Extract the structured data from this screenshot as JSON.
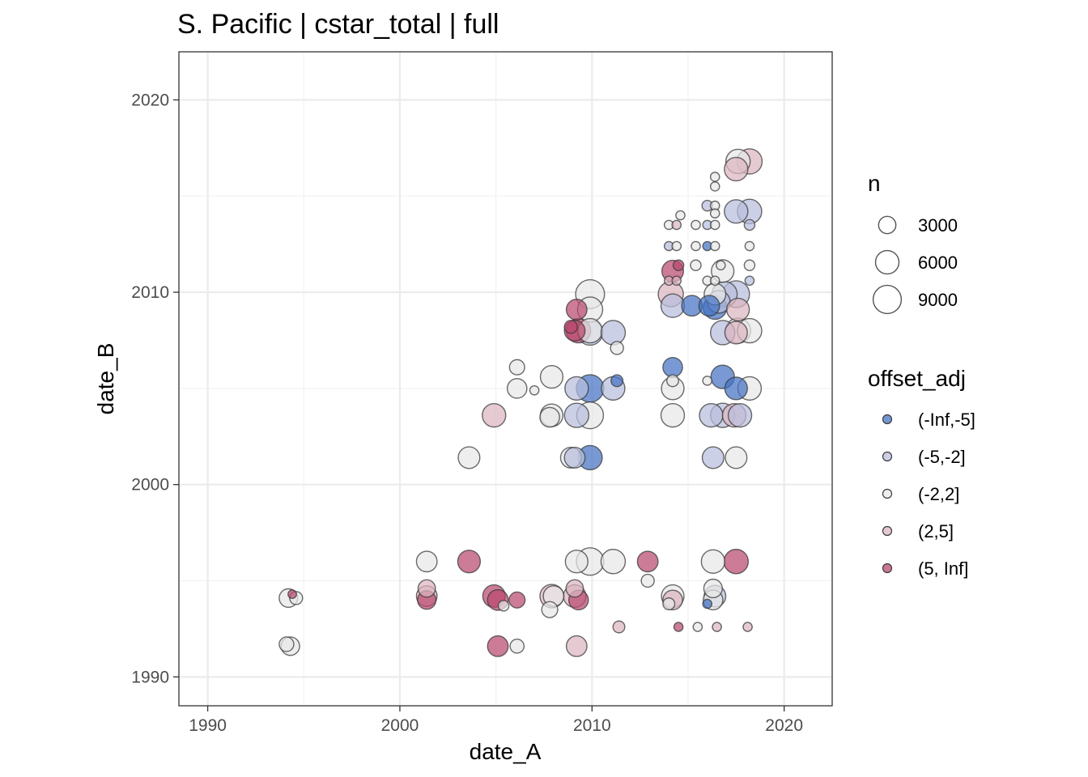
{
  "chart_data": {
    "type": "scatter",
    "title": "S. Pacific | cstar_total | full",
    "xlabel": "date_A",
    "ylabel": "date_B",
    "xlim": [
      1988.5,
      2022.5
    ],
    "ylim": [
      1988.5,
      2022.5
    ],
    "xticks": [
      1990,
      2000,
      2010,
      2020
    ],
    "yticks": [
      1990,
      2000,
      2010,
      2020
    ],
    "xtick_labels": [
      "1990",
      "2000",
      "2010",
      "2020"
    ],
    "ytick_labels": [
      "1990",
      "2000",
      "2010",
      "2020"
    ],
    "grid": true,
    "size_legend": {
      "title": "n",
      "entries": [
        {
          "label": "3000",
          "n": 3000
        },
        {
          "label": "6000",
          "n": 6000
        },
        {
          "label": "9000",
          "n": 9000
        }
      ]
    },
    "color_legend": {
      "title": "offset_adj",
      "entries": [
        {
          "label": "(-Inf,-5]",
          "color": "#4472C4"
        },
        {
          "label": "(-5,-2]",
          "color": "#B9BEDC"
        },
        {
          "label": "(-2,2]",
          "color": "#E8E8E8"
        },
        {
          "label": "(2,5]",
          "color": "#DDB6C0"
        },
        {
          "label": "(5, Inf]",
          "color": "#B84A6E"
        }
      ]
    },
    "points": [
      {
        "x": 1994.2,
        "y": 1994.1,
        "n": 3500,
        "cat": "(-2,2]"
      },
      {
        "x": 1994.6,
        "y": 1994.1,
        "n": 1500,
        "cat": "(-2,2]"
      },
      {
        "x": 1994.4,
        "y": 1994.3,
        "n": 500,
        "cat": "(5, Inf]"
      },
      {
        "x": 1994.1,
        "y": 1991.7,
        "n": 2000,
        "cat": "(-2,2]"
      },
      {
        "x": 1994.3,
        "y": 1991.6,
        "n": 3500,
        "cat": "(-2,2]"
      },
      {
        "x": 2001.4,
        "y": 1996.0,
        "n": 4500,
        "cat": "(-2,2]"
      },
      {
        "x": 2001.4,
        "y": 1994.6,
        "n": 3000,
        "cat": "(2,5]"
      },
      {
        "x": 2001.4,
        "y": 1994.2,
        "n": 4500,
        "cat": "(2,5]"
      },
      {
        "x": 2001.4,
        "y": 1994.0,
        "n": 3500,
        "cat": "(5, Inf]"
      },
      {
        "x": 2003.6,
        "y": 1996.0,
        "n": 5500,
        "cat": "(5, Inf]"
      },
      {
        "x": 2003.6,
        "y": 2001.4,
        "n": 5000,
        "cat": "(-2,2]"
      },
      {
        "x": 2004.9,
        "y": 2003.6,
        "n": 6000,
        "cat": "(2,5]"
      },
      {
        "x": 2004.9,
        "y": 1994.2,
        "n": 5500,
        "cat": "(5, Inf]"
      },
      {
        "x": 2005.1,
        "y": 1994.0,
        "n": 4500,
        "cat": "(5, Inf]"
      },
      {
        "x": 2005.1,
        "y": 1991.6,
        "n": 4500,
        "cat": "(5, Inf]"
      },
      {
        "x": 2005.4,
        "y": 1993.7,
        "n": 900,
        "cat": "(-2,2]"
      },
      {
        "x": 2006.1,
        "y": 1994.0,
        "n": 2500,
        "cat": "(5, Inf]"
      },
      {
        "x": 2006.1,
        "y": 1991.6,
        "n": 1800,
        "cat": "(-2,2]"
      },
      {
        "x": 2006.1,
        "y": 2006.1,
        "n": 2200,
        "cat": "(-2,2]"
      },
      {
        "x": 2006.1,
        "y": 2005.0,
        "n": 4000,
        "cat": "(-2,2]"
      },
      {
        "x": 2007.0,
        "y": 2004.9,
        "n": 600,
        "cat": "(-2,2]"
      },
      {
        "x": 2007.9,
        "y": 2005.6,
        "n": 5500,
        "cat": "(-2,2]"
      },
      {
        "x": 2007.9,
        "y": 2003.6,
        "n": 5500,
        "cat": "(-2,2]"
      },
      {
        "x": 2007.8,
        "y": 2003.5,
        "n": 4000,
        "cat": "(-2,2]"
      },
      {
        "x": 2007.9,
        "y": 1994.2,
        "n": 6000,
        "cat": "(2,5]"
      },
      {
        "x": 2008.0,
        "y": 1994.2,
        "n": 4500,
        "cat": "(-2,2]"
      },
      {
        "x": 2007.8,
        "y": 1993.5,
        "n": 2500,
        "cat": "(-2,2]"
      },
      {
        "x": 2008.9,
        "y": 2001.4,
        "n": 4500,
        "cat": "(-2,2]"
      },
      {
        "x": 2009.1,
        "y": 2001.4,
        "n": 4500,
        "cat": "(-5,-2]"
      },
      {
        "x": 2009.9,
        "y": 2001.4,
        "n": 6500,
        "cat": "(-Inf,-5]"
      },
      {
        "x": 2009.2,
        "y": 2003.6,
        "n": 6500,
        "cat": "(-5,-2]"
      },
      {
        "x": 2009.9,
        "y": 2003.6,
        "n": 8000,
        "cat": "(-2,2]"
      },
      {
        "x": 2009.2,
        "y": 2005.0,
        "n": 6000,
        "cat": "(-5,-2]"
      },
      {
        "x": 2009.9,
        "y": 2005.0,
        "n": 8500,
        "cat": "(-Inf,-5]"
      },
      {
        "x": 2009.1,
        "y": 2008.0,
        "n": 4500,
        "cat": "(5, Inf]"
      },
      {
        "x": 2009.3,
        "y": 2008.0,
        "n": 6500,
        "cat": "(5, Inf]"
      },
      {
        "x": 2008.9,
        "y": 2008.2,
        "n": 1500,
        "cat": "(5, Inf]"
      },
      {
        "x": 2009.9,
        "y": 2008.0,
        "n": 6500,
        "cat": "(-2,2]"
      },
      {
        "x": 2009.9,
        "y": 2007.9,
        "n": 7000,
        "cat": "(-5,-2]"
      },
      {
        "x": 2009.2,
        "y": 2009.1,
        "n": 4500,
        "cat": "(5, Inf]"
      },
      {
        "x": 2009.9,
        "y": 2009.1,
        "n": 7000,
        "cat": "(-2,2]"
      },
      {
        "x": 2009.9,
        "y": 2009.9,
        "n": 9500,
        "cat": "(-2,2]"
      },
      {
        "x": 2011.1,
        "y": 2007.9,
        "n": 6500,
        "cat": "(-5,-2]"
      },
      {
        "x": 2011.3,
        "y": 2007.1,
        "n": 1500,
        "cat": "(-2,2]"
      },
      {
        "x": 2011.1,
        "y": 2005.0,
        "n": 6000,
        "cat": "(-5,-2]"
      },
      {
        "x": 2011.3,
        "y": 2005.4,
        "n": 1200,
        "cat": "(-Inf,-5]"
      },
      {
        "x": 2009.2,
        "y": 1996.0,
        "n": 5500,
        "cat": "(-2,2]"
      },
      {
        "x": 2009.9,
        "y": 1996.0,
        "n": 8500,
        "cat": "(-2,2]"
      },
      {
        "x": 2011.1,
        "y": 1996.0,
        "n": 6500,
        "cat": "(-2,2]"
      },
      {
        "x": 2009.1,
        "y": 1994.6,
        "n": 3000,
        "cat": "(2,5]"
      },
      {
        "x": 2009.1,
        "y": 1994.2,
        "n": 5500,
        "cat": "(2,5]"
      },
      {
        "x": 2009.3,
        "y": 1994.0,
        "n": 4000,
        "cat": "(5, Inf]"
      },
      {
        "x": 2009.2,
        "y": 1991.6,
        "n": 4500,
        "cat": "(2,5]"
      },
      {
        "x": 2011.4,
        "y": 1992.6,
        "n": 1200,
        "cat": "(2,5]"
      },
      {
        "x": 2012.9,
        "y": 1996.0,
        "n": 4500,
        "cat": "(5, Inf]"
      },
      {
        "x": 2012.9,
        "y": 1995.0,
        "n": 1500,
        "cat": "(-2,2]"
      },
      {
        "x": 2014.2,
        "y": 1994.2,
        "n": 5500,
        "cat": "(-2,2]"
      },
      {
        "x": 2014.2,
        "y": 1994.0,
        "n": 4000,
        "cat": "(2,5]"
      },
      {
        "x": 2014.0,
        "y": 1993.8,
        "n": 1200,
        "cat": "(-2,2]"
      },
      {
        "x": 2014.5,
        "y": 1992.6,
        "n": 600,
        "cat": "(5, Inf]"
      },
      {
        "x": 2015.5,
        "y": 1992.6,
        "n": 600,
        "cat": "(-2,2]"
      },
      {
        "x": 2016.5,
        "y": 1992.6,
        "n": 600,
        "cat": "(2,5]"
      },
      {
        "x": 2018.1,
        "y": 1992.6,
        "n": 600,
        "cat": "(2,5]"
      },
      {
        "x": 2016.3,
        "y": 1996.0,
        "n": 6000,
        "cat": "(-2,2]"
      },
      {
        "x": 2017.5,
        "y": 1996.0,
        "n": 6500,
        "cat": "(5, Inf]"
      },
      {
        "x": 2016.3,
        "y": 1994.6,
        "n": 3500,
        "cat": "(-2,2]"
      },
      {
        "x": 2016.4,
        "y": 1994.2,
        "n": 5000,
        "cat": "(-5,-2]"
      },
      {
        "x": 2016.3,
        "y": 1994.0,
        "n": 4000,
        "cat": "(-2,2]"
      },
      {
        "x": 2016.0,
        "y": 1993.8,
        "n": 600,
        "cat": "(-Inf,-5]"
      },
      {
        "x": 2014.2,
        "y": 2003.6,
        "n": 6000,
        "cat": "(-2,2]"
      },
      {
        "x": 2014.2,
        "y": 2005.0,
        "n": 5500,
        "cat": "(-2,2]"
      },
      {
        "x": 2014.2,
        "y": 2005.4,
        "n": 1200,
        "cat": "(-2,2]"
      },
      {
        "x": 2014.2,
        "y": 2006.1,
        "n": 4000,
        "cat": "(-Inf,-5]"
      },
      {
        "x": 2014.2,
        "y": 2009.3,
        "n": 6000,
        "cat": "(-5,-2]"
      },
      {
        "x": 2014.1,
        "y": 2009.9,
        "n": 7000,
        "cat": "(2,5]"
      },
      {
        "x": 2015.2,
        "y": 2009.3,
        "n": 4500,
        "cat": "(-Inf,-5]"
      },
      {
        "x": 2014.2,
        "y": 2011.1,
        "n": 5000,
        "cat": "(5, Inf]"
      },
      {
        "x": 2014.5,
        "y": 2011.4,
        "n": 900,
        "cat": "(5, Inf]"
      },
      {
        "x": 2014.0,
        "y": 2010.6,
        "n": 600,
        "cat": "(2,5]"
      },
      {
        "x": 2014.4,
        "y": 2010.6,
        "n": 600,
        "cat": "(2,5]"
      },
      {
        "x": 2014.0,
        "y": 2012.4,
        "n": 600,
        "cat": "(-5,-2]"
      },
      {
        "x": 2014.4,
        "y": 2012.4,
        "n": 600,
        "cat": "(-2,2]"
      },
      {
        "x": 2014.0,
        "y": 2013.5,
        "n": 600,
        "cat": "(-2,2]"
      },
      {
        "x": 2014.4,
        "y": 2013.5,
        "n": 600,
        "cat": "(2,5]"
      },
      {
        "x": 2014.6,
        "y": 2014.0,
        "n": 600,
        "cat": "(-2,2]"
      },
      {
        "x": 2015.4,
        "y": 2013.5,
        "n": 600,
        "cat": "(-2,2]"
      },
      {
        "x": 2015.4,
        "y": 2012.4,
        "n": 600,
        "cat": "(-2,2]"
      },
      {
        "x": 2015.4,
        "y": 2011.4,
        "n": 900,
        "cat": "(-2,2]"
      },
      {
        "x": 2016.0,
        "y": 2013.5,
        "n": 600,
        "cat": "(-5,-2]"
      },
      {
        "x": 2016.4,
        "y": 2013.5,
        "n": 600,
        "cat": "(-2,2]"
      },
      {
        "x": 2016.0,
        "y": 2012.4,
        "n": 600,
        "cat": "(-Inf,-5]"
      },
      {
        "x": 2016.4,
        "y": 2012.4,
        "n": 600,
        "cat": "(-2,2]"
      },
      {
        "x": 2016.0,
        "y": 2014.5,
        "n": 900,
        "cat": "(-5,-2]"
      },
      {
        "x": 2016.4,
        "y": 2014.5,
        "n": 600,
        "cat": "(-2,2]"
      },
      {
        "x": 2016.4,
        "y": 2014.1,
        "n": 600,
        "cat": "(-2,2]"
      },
      {
        "x": 2016.4,
        "y": 2015.5,
        "n": 600,
        "cat": "(-2,2]"
      },
      {
        "x": 2016.4,
        "y": 2016.0,
        "n": 600,
        "cat": "(-2,2]"
      },
      {
        "x": 2016.0,
        "y": 2010.6,
        "n": 600,
        "cat": "(-2,2]"
      },
      {
        "x": 2016.4,
        "y": 2010.6,
        "n": 600,
        "cat": "(-2,2]"
      },
      {
        "x": 2016.0,
        "y": 2005.4,
        "n": 600,
        "cat": "(-2,2]"
      },
      {
        "x": 2016.1,
        "y": 2009.3,
        "n": 4500,
        "cat": "(-Inf,-5]"
      },
      {
        "x": 2016.4,
        "y": 2009.2,
        "n": 6000,
        "cat": "(-Inf,-5]"
      },
      {
        "x": 2016.4,
        "y": 2009.9,
        "n": 5000,
        "cat": "(-2,2]"
      },
      {
        "x": 2016.6,
        "y": 2009.5,
        "n": 5500,
        "cat": "(-5,-2]"
      },
      {
        "x": 2016.9,
        "y": 2009.9,
        "n": 7000,
        "cat": "(-5,-2]"
      },
      {
        "x": 2016.8,
        "y": 2011.1,
        "n": 5500,
        "cat": "(-2,2]"
      },
      {
        "x": 2016.7,
        "y": 2011.4,
        "n": 600,
        "cat": "(-2,2]"
      },
      {
        "x": 2016.8,
        "y": 2007.9,
        "n": 6500,
        "cat": "(-5,-2]"
      },
      {
        "x": 2016.8,
        "y": 2005.6,
        "n": 6000,
        "cat": "(-Inf,-5]"
      },
      {
        "x": 2016.2,
        "y": 2003.6,
        "n": 6000,
        "cat": "(-5,-2]"
      },
      {
        "x": 2016.8,
        "y": 2003.6,
        "n": 6500,
        "cat": "(-5,-2]"
      },
      {
        "x": 2016.3,
        "y": 2001.4,
        "n": 5000,
        "cat": "(-5,-2]"
      },
      {
        "x": 2017.5,
        "y": 2001.4,
        "n": 5000,
        "cat": "(-2,2]"
      },
      {
        "x": 2017.4,
        "y": 2003.6,
        "n": 6000,
        "cat": "(2,5]"
      },
      {
        "x": 2017.7,
        "y": 2003.6,
        "n": 6000,
        "cat": "(-5,-2]"
      },
      {
        "x": 2017.5,
        "y": 2005.0,
        "n": 5500,
        "cat": "(-Inf,-5]"
      },
      {
        "x": 2018.2,
        "y": 2005.0,
        "n": 6000,
        "cat": "(-2,2]"
      },
      {
        "x": 2017.5,
        "y": 2007.9,
        "n": 5500,
        "cat": "(2,5]"
      },
      {
        "x": 2017.6,
        "y": 2008.0,
        "n": 7000,
        "cat": "(-2,2]"
      },
      {
        "x": 2018.2,
        "y": 2008.0,
        "n": 6500,
        "cat": "(-2,2]"
      },
      {
        "x": 2017.6,
        "y": 2009.1,
        "n": 5500,
        "cat": "(2,5]"
      },
      {
        "x": 2017.5,
        "y": 2009.9,
        "n": 8000,
        "cat": "(-5,-2]"
      },
      {
        "x": 2018.2,
        "y": 2010.6,
        "n": 600,
        "cat": "(-5,-2]"
      },
      {
        "x": 2018.2,
        "y": 2011.4,
        "n": 900,
        "cat": "(-2,2]"
      },
      {
        "x": 2018.2,
        "y": 2012.4,
        "n": 600,
        "cat": "(-2,2]"
      },
      {
        "x": 2018.2,
        "y": 2013.5,
        "n": 900,
        "cat": "(-5,-2]"
      },
      {
        "x": 2017.5,
        "y": 2014.2,
        "n": 6000,
        "cat": "(-5,-2]"
      },
      {
        "x": 2018.2,
        "y": 2014.2,
        "n": 6500,
        "cat": "(-5,-2]"
      },
      {
        "x": 2017.5,
        "y": 2016.4,
        "n": 6000,
        "cat": "(2,5]"
      },
      {
        "x": 2017.6,
        "y": 2016.8,
        "n": 6500,
        "cat": "(-2,2]"
      },
      {
        "x": 2018.2,
        "y": 2016.8,
        "n": 7000,
        "cat": "(2,5]"
      }
    ]
  }
}
